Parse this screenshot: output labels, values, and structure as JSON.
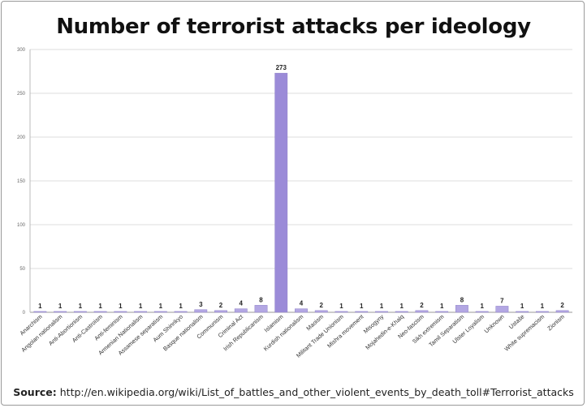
{
  "chart_data": {
    "type": "bar",
    "title": "Number of terrorist attacks per ideology",
    "xlabel": "",
    "ylabel": "",
    "ylim": [
      0,
      300
    ],
    "yticks": [
      0,
      50,
      100,
      150,
      200,
      250,
      300
    ],
    "grid": true,
    "legend": "none",
    "bar_color": "#b3a7e3",
    "highlight_color": "#9b8bd8",
    "categories": [
      "Anarchism",
      "Angolan nationalism",
      "Anti-Abortionism",
      "Anti-Castroism",
      "Anti-feminism",
      "Armenian Nationalism",
      "Assamese separatism",
      "Aum Shinrikyo",
      "Basque nationalism",
      "Communism",
      "Criminal Act",
      "Irish Republicanism",
      "Islamism",
      "Kurdish nationalism",
      "Maoism",
      "Militant Trade Unionism",
      "Mishra movement",
      "Misogyny",
      "Mojahedin-e-Khalq",
      "Neo-fascism",
      "Sikh extremism",
      "Tamil Separatism",
      "Ulster Loyalism",
      "Unknown",
      "Ustaše",
      "White supremacism",
      "Zionism"
    ],
    "values": [
      1,
      1,
      1,
      1,
      1,
      1,
      1,
      1,
      3,
      2,
      4,
      8,
      273,
      4,
      2,
      1,
      1,
      1,
      1,
      2,
      1,
      8,
      1,
      7,
      1,
      1,
      2
    ]
  },
  "source": {
    "label": "Source:",
    "text": "http://en.wikipedia.org/wiki/List_of_battles_and_other_violent_events_by_death_toll#Terrorist_attacks"
  }
}
